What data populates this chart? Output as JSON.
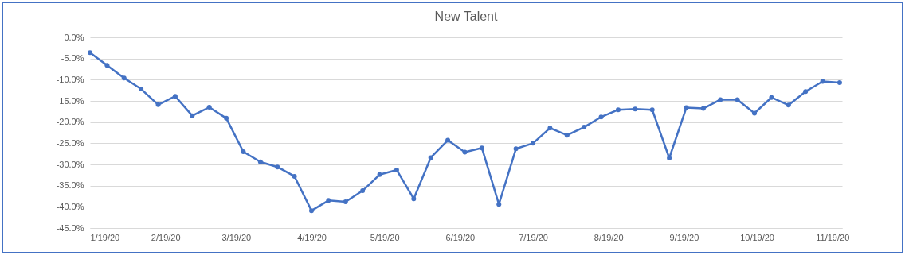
{
  "chart_data": {
    "type": "line",
    "title": "New Talent",
    "x": [
      "2020-01-19",
      "2020-01-26",
      "2020-02-02",
      "2020-02-09",
      "2020-02-16",
      "2020-02-23",
      "2020-03-01",
      "2020-03-08",
      "2020-03-15",
      "2020-03-22",
      "2020-03-29",
      "2020-04-05",
      "2020-04-12",
      "2020-04-19",
      "2020-04-26",
      "2020-05-03",
      "2020-05-10",
      "2020-05-17",
      "2020-05-24",
      "2020-05-31",
      "2020-06-07",
      "2020-06-14",
      "2020-06-21",
      "2020-06-28",
      "2020-07-05",
      "2020-07-12",
      "2020-07-19",
      "2020-07-26",
      "2020-08-02",
      "2020-08-09",
      "2020-08-16",
      "2020-08-23",
      "2020-08-30",
      "2020-09-06",
      "2020-09-13",
      "2020-09-20",
      "2020-09-27",
      "2020-10-04",
      "2020-10-11",
      "2020-10-18",
      "2020-10-25",
      "2020-11-01",
      "2020-11-08",
      "2020-11-15",
      "2020-11-22"
    ],
    "series": [
      {
        "color": "#4472c4",
        "values": [
          -3.6,
          -6.6,
          -9.6,
          -12.2,
          -15.9,
          -13.9,
          -18.5,
          -16.5,
          -19.1,
          -27.0,
          -29.4,
          -30.6,
          -32.8,
          -40.9,
          -38.5,
          -38.8,
          -36.2,
          -32.4,
          -31.3,
          -38.1,
          -28.4,
          -24.3,
          -27.1,
          -26.1,
          -39.4,
          -26.3,
          -25.0,
          -21.4,
          -23.1,
          -21.2,
          -18.8,
          -17.1,
          -16.9,
          -17.1,
          -28.5,
          -16.6,
          -16.8,
          -14.7,
          -14.7,
          -17.9,
          -14.2,
          -16.0,
          -12.8,
          -10.4,
          -10.7
        ]
      }
    ],
    "xlim": [
      "2020-01-19",
      "2020-11-23"
    ],
    "xticks": [
      {
        "value": "2020-01-19",
        "label": "1/19/20"
      },
      {
        "value": "2020-02-19",
        "label": "2/19/20"
      },
      {
        "value": "2020-03-19",
        "label": "3/19/20"
      },
      {
        "value": "2020-04-19",
        "label": "4/19/20"
      },
      {
        "value": "2020-05-19",
        "label": "5/19/20"
      },
      {
        "value": "2020-06-19",
        "label": "6/19/20"
      },
      {
        "value": "2020-07-19",
        "label": "7/19/20"
      },
      {
        "value": "2020-08-19",
        "label": "8/19/20"
      },
      {
        "value": "2020-09-19",
        "label": "9/19/20"
      },
      {
        "value": "2020-10-19",
        "label": "10/19/20"
      },
      {
        "value": "2020-11-19",
        "label": "11/19/20"
      }
    ],
    "ylim": [
      -45,
      0
    ],
    "yticks": [
      {
        "value": -45,
        "label": "-45.0%"
      },
      {
        "value": -40,
        "label": "-40.0%"
      },
      {
        "value": -35,
        "label": "-35.0%"
      },
      {
        "value": -30,
        "label": "-30.0%"
      },
      {
        "value": -25,
        "label": "-25.0%"
      },
      {
        "value": -20,
        "label": "-20.0%"
      },
      {
        "value": -15,
        "label": "-15.0%"
      },
      {
        "value": -10,
        "label": "-10.0%"
      },
      {
        "value": -5,
        "label": "-5.0%"
      },
      {
        "value": 0,
        "label": "0.0%"
      }
    ],
    "grid": "y",
    "marker": "circle",
    "line_style": "solid"
  }
}
